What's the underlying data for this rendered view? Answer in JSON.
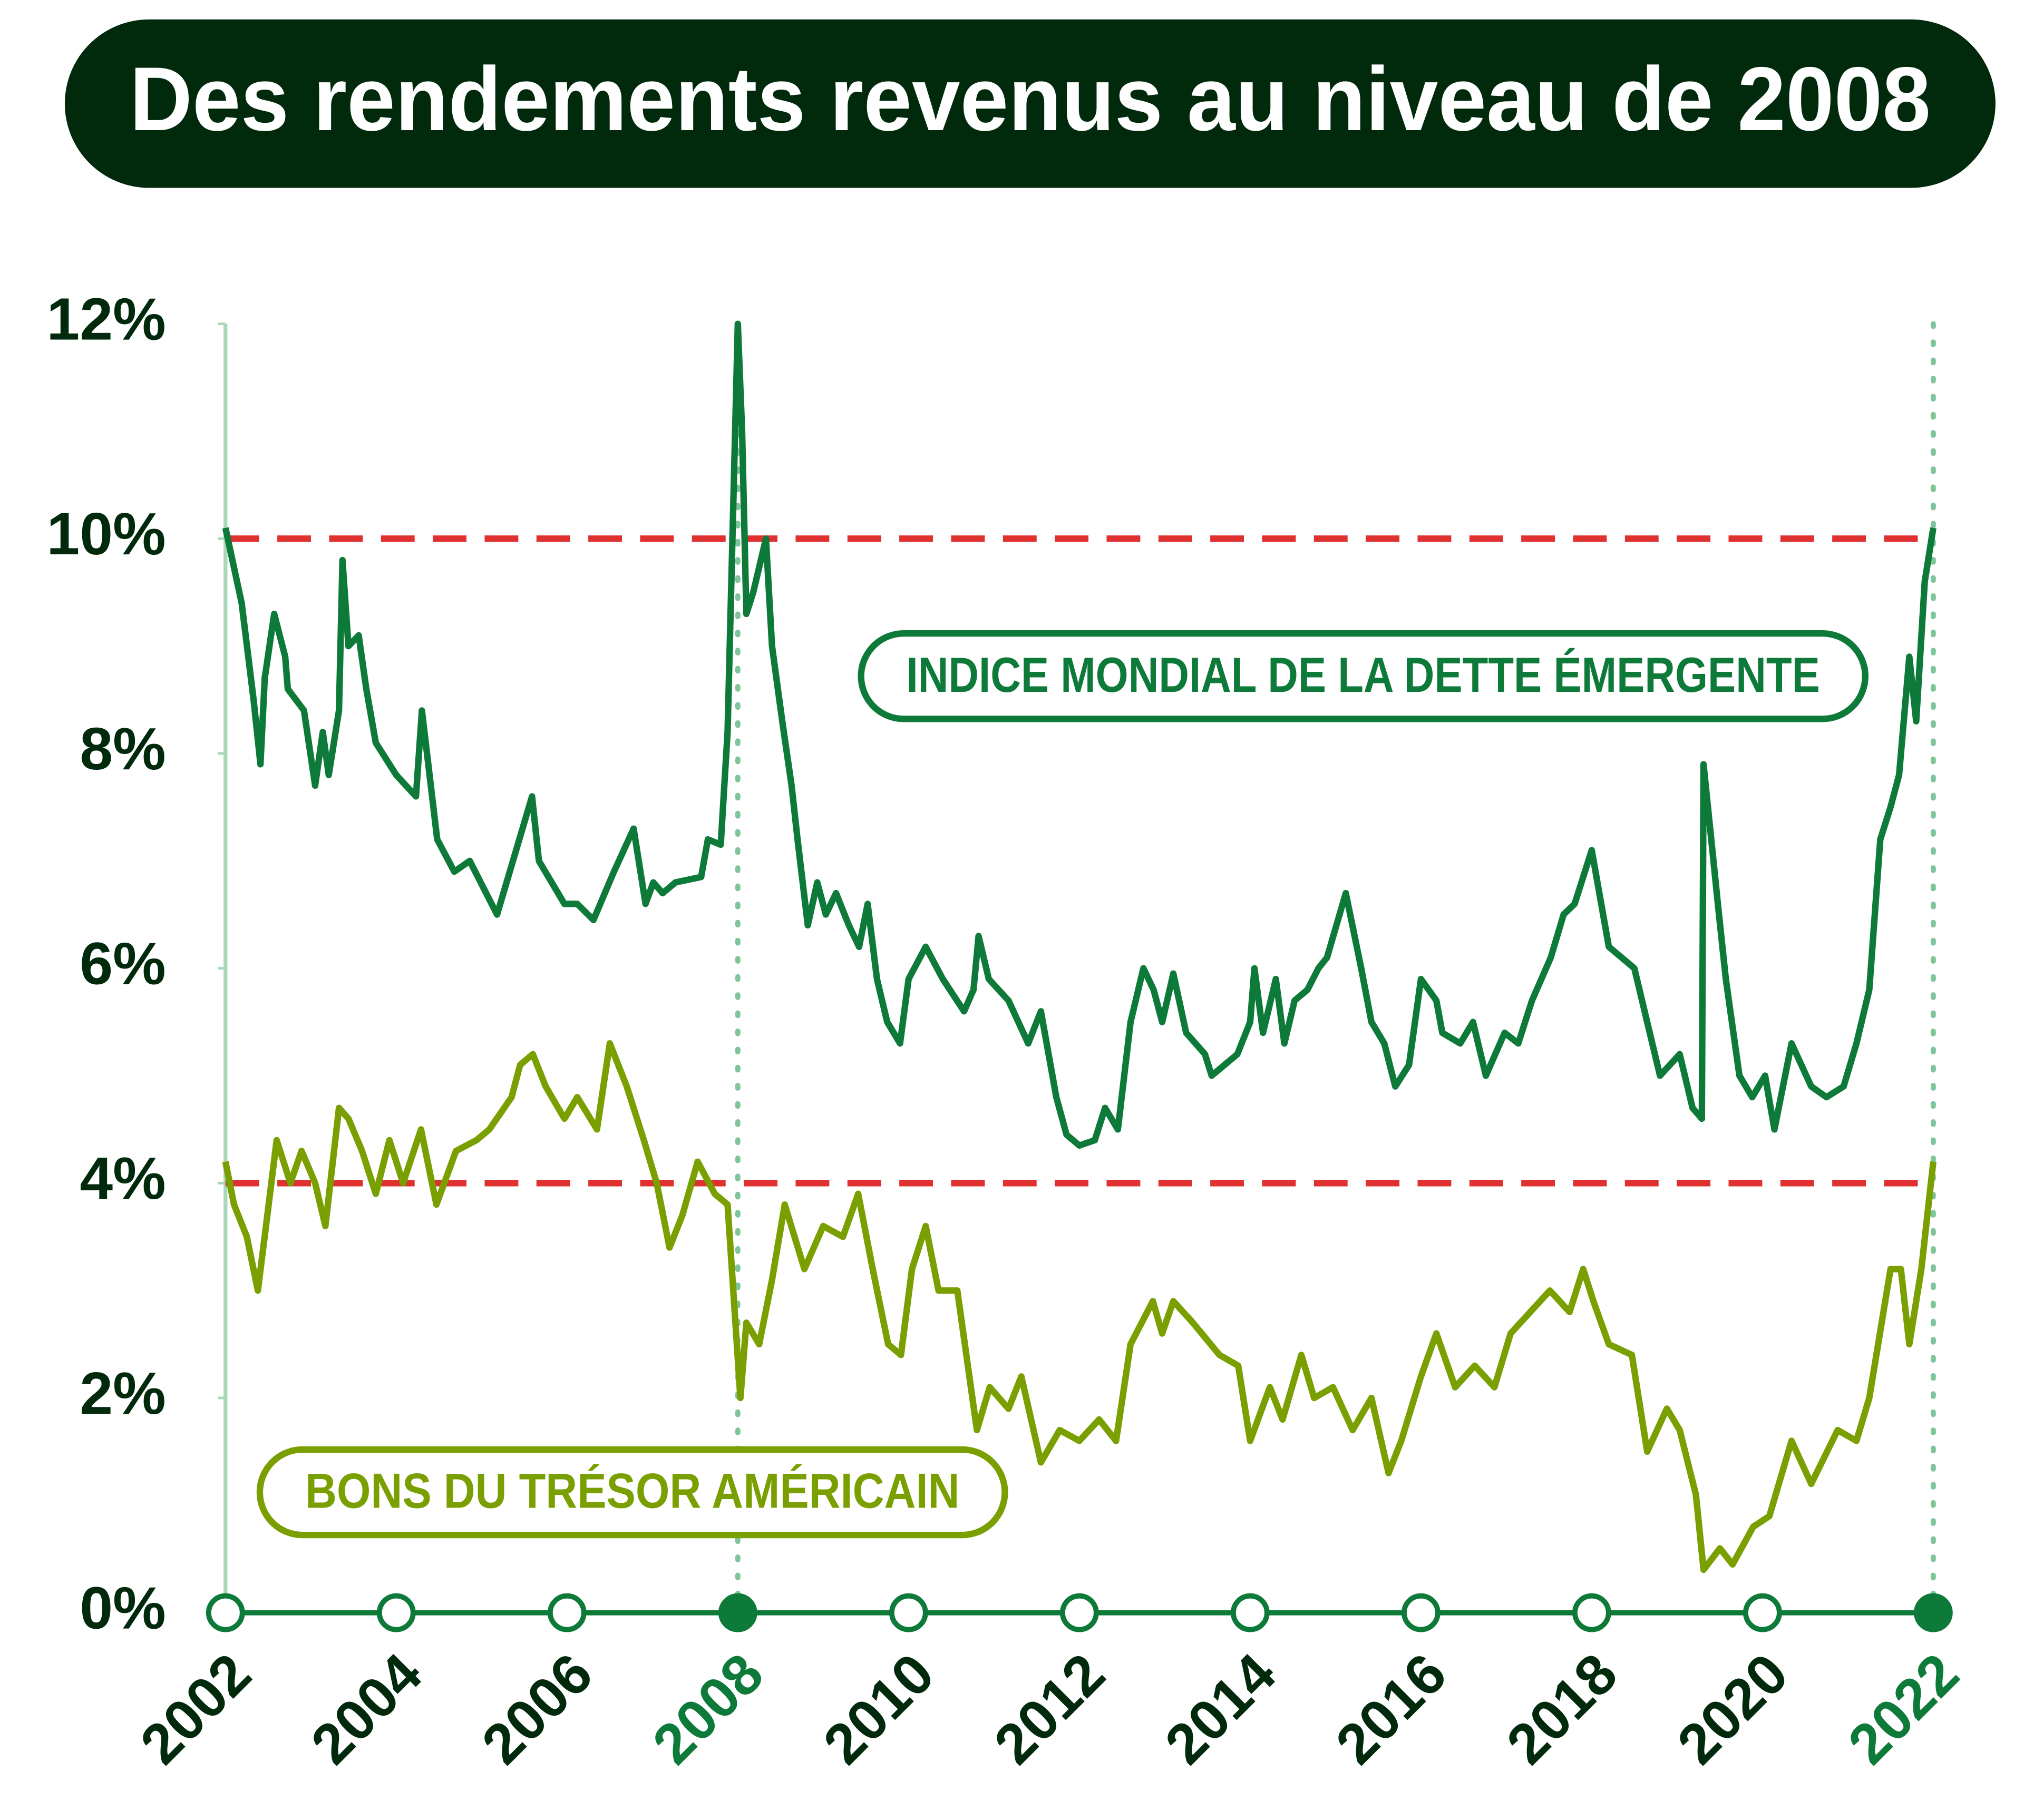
{
  "chart_data": {
    "type": "line",
    "title": "Des rendements revenus au niveau de 2008",
    "xlim": [
      2002,
      2022
    ],
    "xticks": [
      2002,
      2004,
      2006,
      2008,
      2010,
      2012,
      2014,
      2016,
      2018,
      2020,
      2022
    ],
    "highlight_x": [
      2008,
      2022
    ],
    "highlight_color": "#0e7a3a",
    "ylim": [
      0,
      12
    ],
    "yticks": [
      {
        "value": 0,
        "label": "0%"
      },
      {
        "value": 2,
        "label": "2%"
      },
      {
        "value": 4,
        "label": "4%"
      },
      {
        "value": 6,
        "label": "6%"
      },
      {
        "value": 8,
        "label": "8%"
      },
      {
        "value": 10,
        "label": "10%"
      },
      {
        "value": 12,
        "label": "12%"
      }
    ],
    "reference_lines": [
      10,
      4
    ],
    "reference_color": "#e03131",
    "series": [
      {
        "name": "INDICE MONDIAL DE LA DETTE ÉMERGENTE",
        "color": "#0e7a3a",
        "x": [
          2002.0,
          2002.19,
          2002.33,
          2002.41,
          2002.46,
          2002.57,
          2002.7,
          2002.73,
          2002.92,
          2003.05,
          2003.14,
          2003.21,
          2003.33,
          2003.37,
          2003.44,
          2003.56,
          2003.65,
          2003.76,
          2004.0,
          2004.23,
          2004.3,
          2004.48,
          2004.68,
          2004.86,
          2005.18,
          2005.59,
          2005.67,
          2005.97,
          2006.12,
          2006.31,
          2006.55,
          2006.78,
          2006.92,
          2007.01,
          2007.12,
          2007.27,
          2007.57,
          2007.65,
          2007.8,
          2007.88,
          2008.0,
          2008.05,
          2008.1,
          2008.18,
          2008.33,
          2008.4,
          2008.52,
          2008.63,
          2008.7,
          2008.82,
          2008.93,
          2009.03,
          2009.15,
          2009.3,
          2009.42,
          2009.52,
          2009.63,
          2009.75,
          2009.9,
          2010.0,
          2010.2,
          2010.4,
          2010.65,
          2010.76,
          2010.82,
          2010.94,
          2011.17,
          2011.4,
          2011.55,
          2011.73,
          2011.85,
          2012.0,
          2012.18,
          2012.3,
          2012.45,
          2012.6,
          2012.75,
          2012.87,
          2012.97,
          2013.1,
          2013.25,
          2013.47,
          2013.55,
          2013.85,
          2014.0,
          2014.05,
          2014.15,
          2014.3,
          2014.4,
          2014.52,
          2014.67,
          2014.8,
          2014.9,
          2015.12,
          2015.3,
          2015.42,
          2015.57,
          2015.7,
          2015.86,
          2016.0,
          2016.18,
          2016.25,
          2016.46,
          2016.61,
          2016.76,
          2016.98,
          2017.14,
          2017.3,
          2017.52,
          2017.67,
          2017.8,
          2018.0,
          2018.2,
          2018.5,
          2018.65,
          2018.8,
          2019.03,
          2019.18,
          2019.29,
          2019.31,
          2019.49,
          2019.57,
          2019.73,
          2019.88,
          2020.03,
          2020.14,
          2020.34,
          2020.57,
          2020.75,
          2020.95,
          2021.1,
          2021.25,
          2021.38,
          2021.5,
          2021.6,
          2021.72,
          2021.8,
          2021.9,
          2022.0
        ],
        "values": [
          10.1,
          9.4,
          8.5,
          7.9,
          8.7,
          9.3,
          8.9,
          8.6,
          8.4,
          7.7,
          8.2,
          7.8,
          8.4,
          9.8,
          9.0,
          9.1,
          8.6,
          8.1,
          7.8,
          7.6,
          8.4,
          7.2,
          6.9,
          7.0,
          6.5,
          7.6,
          7.0,
          6.6,
          6.6,
          6.45,
          6.9,
          7.3,
          6.6,
          6.8,
          6.7,
          6.8,
          6.85,
          7.2,
          7.15,
          8.2,
          12.0,
          11.0,
          9.3,
          9.5,
          10.0,
          9.0,
          8.3,
          7.7,
          7.2,
          6.4,
          6.8,
          6.5,
          6.7,
          6.4,
          6.2,
          6.6,
          5.9,
          5.5,
          5.3,
          5.9,
          6.2,
          5.9,
          5.6,
          5.8,
          6.3,
          5.9,
          5.7,
          5.3,
          5.6,
          4.8,
          4.45,
          4.35,
          4.4,
          4.7,
          4.5,
          5.5,
          6.0,
          5.8,
          5.5,
          5.95,
          5.4,
          5.2,
          5.0,
          5.2,
          5.5,
          6.0,
          5.4,
          5.9,
          5.3,
          5.7,
          5.8,
          6.0,
          6.1,
          6.7,
          6.0,
          5.5,
          5.3,
          4.9,
          5.1,
          5.9,
          5.7,
          5.4,
          5.3,
          5.5,
          5.0,
          5.4,
          5.3,
          5.7,
          6.1,
          6.5,
          6.6,
          7.1,
          6.2,
          6.0,
          5.5,
          5.0,
          5.2,
          4.7,
          4.6,
          7.9,
          6.5,
          5.9,
          5.0,
          4.8,
          5.0,
          4.5,
          5.3,
          4.9,
          4.8,
          4.9,
          5.3,
          5.8,
          7.2,
          7.5,
          7.8,
          8.9,
          8.3,
          9.6,
          10.1
        ]
      },
      {
        "name": "BONS DU TRÉSOR AMÉRICAIN",
        "color": "#7a9f00",
        "x": [
          2002.0,
          2002.1,
          2002.25,
          2002.38,
          2002.49,
          2002.6,
          2002.76,
          2002.89,
          2003.05,
          2003.17,
          2003.33,
          2003.44,
          2003.6,
          2003.76,
          2003.92,
          2004.08,
          2004.29,
          2004.47,
          2004.7,
          2004.94,
          2005.09,
          2005.35,
          2005.45,
          2005.6,
          2005.75,
          2005.97,
          2006.12,
          2006.35,
          2006.5,
          2006.7,
          2006.9,
          2007.05,
          2007.2,
          2007.35,
          2007.53,
          2007.73,
          2007.88,
          2008.03,
          2008.1,
          2008.25,
          2008.4,
          2008.55,
          2008.78,
          2009.0,
          2009.23,
          2009.41,
          2009.58,
          2009.76,
          2009.91,
          2010.04,
          2010.2,
          2010.35,
          2010.57,
          2010.8,
          2010.95,
          2011.17,
          2011.32,
          2011.55,
          2011.77,
          2012.0,
          2012.23,
          2012.43,
          2012.6,
          2012.86,
          2012.97,
          2013.1,
          2013.33,
          2013.64,
          2013.86,
          2014.0,
          2014.23,
          2014.38,
          2014.6,
          2014.75,
          2014.97,
          2015.2,
          2015.42,
          2015.62,
          2015.77,
          2016.0,
          2016.18,
          2016.4,
          2016.63,
          2016.86,
          2017.05,
          2017.28,
          2017.51,
          2017.74,
          2017.9,
          2018.02,
          2018.2,
          2018.47,
          2018.65,
          2018.88,
          2019.03,
          2019.22,
          2019.31,
          2019.5,
          2019.65,
          2019.89,
          2020.08,
          2020.34,
          2020.57,
          2020.88,
          2021.1,
          2021.25,
          2021.5,
          2021.62,
          2021.72,
          2021.86,
          2022.0
        ],
        "values": [
          4.2,
          3.8,
          3.5,
          3.0,
          3.7,
          4.4,
          4.0,
          4.3,
          4.0,
          3.6,
          4.7,
          4.6,
          4.3,
          3.9,
          4.4,
          4.0,
          4.5,
          3.8,
          4.3,
          4.4,
          4.5,
          4.8,
          5.1,
          5.2,
          4.9,
          4.6,
          4.8,
          4.5,
          5.3,
          4.9,
          4.4,
          4.0,
          3.4,
          3.7,
          4.2,
          3.9,
          3.8,
          2.0,
          2.7,
          2.5,
          3.1,
          3.8,
          3.2,
          3.6,
          3.5,
          3.9,
          3.2,
          2.5,
          2.4,
          3.2,
          3.6,
          3.0,
          3.0,
          1.7,
          2.1,
          1.9,
          2.2,
          1.4,
          1.7,
          1.6,
          1.8,
          1.6,
          2.5,
          2.9,
          2.6,
          2.9,
          2.7,
          2.4,
          2.3,
          1.6,
          2.1,
          1.8,
          2.4,
          2.0,
          2.1,
          1.7,
          2.0,
          1.3,
          1.6,
          2.2,
          2.6,
          2.1,
          2.3,
          2.1,
          2.6,
          2.8,
          3.0,
          2.8,
          3.2,
          2.9,
          2.5,
          2.4,
          1.5,
          1.9,
          1.7,
          1.1,
          0.4,
          0.6,
          0.45,
          0.8,
          0.9,
          1.6,
          1.2,
          1.7,
          1.6,
          2.0,
          3.2,
          3.2,
          2.5,
          3.2,
          4.2
        ]
      }
    ]
  }
}
